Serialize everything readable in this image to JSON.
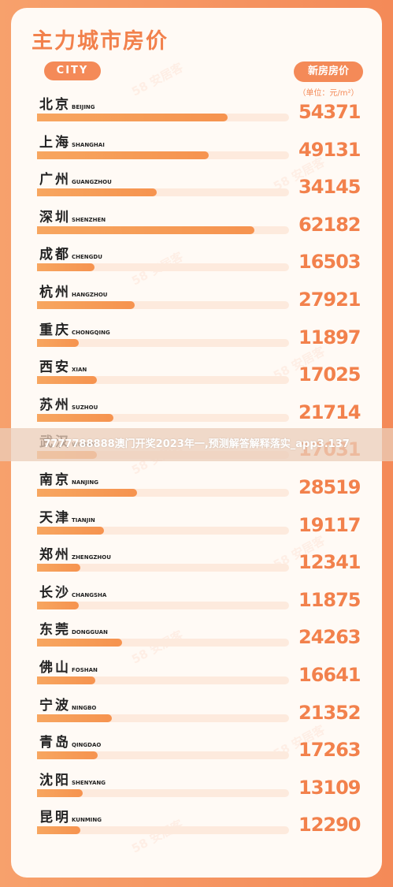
{
  "header": {
    "title": "主力城市房价",
    "city_label": "CITY",
    "price_label": "新房房价",
    "unit": "（单位：元/m²）"
  },
  "watermark": "58 安居客",
  "overlay_text": "7777788888澳门开奖2023年一,预测解答解释落实_app3.137",
  "colors": {
    "accent": "#f48a58",
    "bar": "#f6934f",
    "track": "#fdeadd"
  },
  "chart_data": {
    "type": "bar",
    "orientation": "horizontal",
    "title": "主力城市房价",
    "ylabel": "新房房价（单位：元/m²）",
    "categories": [
      {
        "name": "北京",
        "pinyin": "BEIJING"
      },
      {
        "name": "上海",
        "pinyin": "SHANGHAI"
      },
      {
        "name": "广州",
        "pinyin": "GUANGZHOU"
      },
      {
        "name": "深圳",
        "pinyin": "SHENZHEN"
      },
      {
        "name": "成都",
        "pinyin": "CHENGDU"
      },
      {
        "name": "杭州",
        "pinyin": "HANGZHOU"
      },
      {
        "name": "重庆",
        "pinyin": "CHONGQING"
      },
      {
        "name": "西安",
        "pinyin": "XIAN"
      },
      {
        "name": "苏州",
        "pinyin": "SUZHOU"
      },
      {
        "name": "武汉",
        "pinyin": "WUHAN"
      },
      {
        "name": "南京",
        "pinyin": "NANJING"
      },
      {
        "name": "天津",
        "pinyin": "TIANJIN"
      },
      {
        "name": "郑州",
        "pinyin": "ZHENGZHOU"
      },
      {
        "name": "长沙",
        "pinyin": "CHANGSHA"
      },
      {
        "name": "东莞",
        "pinyin": "DONGGUAN"
      },
      {
        "name": "佛山",
        "pinyin": "FOSHAN"
      },
      {
        "name": "宁波",
        "pinyin": "NINGBO"
      },
      {
        "name": "青岛",
        "pinyin": "QINGDAO"
      },
      {
        "name": "沈阳",
        "pinyin": "SHENYANG"
      },
      {
        "name": "昆明",
        "pinyin": "KUNMING"
      }
    ],
    "values": [
      54371,
      49131,
      34145,
      62182,
      16503,
      27921,
      11897,
      17025,
      21714,
      17031,
      28519,
      19117,
      12341,
      11875,
      24263,
      16641,
      21352,
      17263,
      13109,
      12290
    ],
    "xlim": [
      0,
      72000
    ]
  }
}
